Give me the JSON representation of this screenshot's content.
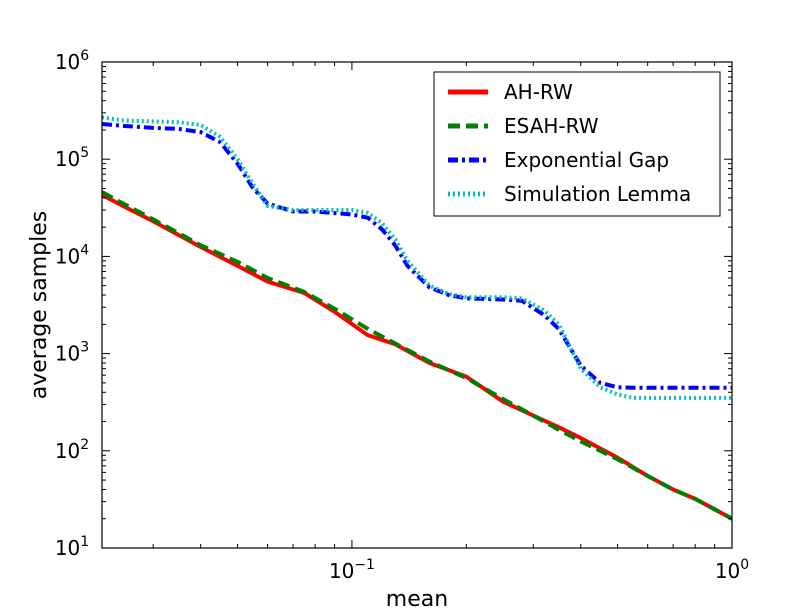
{
  "chart_data": {
    "type": "line",
    "title": "",
    "xlabel": "mean",
    "ylabel": "average samples",
    "xscale": "log",
    "yscale": "log",
    "xlim": [
      0.022,
      1.0
    ],
    "ylim": [
      10,
      1000000
    ],
    "grid": false,
    "legend_position": "top-right",
    "x_ticks": [
      {
        "value": 0.1,
        "base": "10",
        "exp": "−1"
      },
      {
        "value": 1.0,
        "base": "10",
        "exp": "0"
      }
    ],
    "y_ticks": [
      {
        "value": 10,
        "base": "10",
        "exp": "1"
      },
      {
        "value": 100,
        "base": "10",
        "exp": "2"
      },
      {
        "value": 1000,
        "base": "10",
        "exp": "3"
      },
      {
        "value": 10000,
        "base": "10",
        "exp": "4"
      },
      {
        "value": 100000,
        "base": "10",
        "exp": "5"
      },
      {
        "value": 1000000,
        "base": "10",
        "exp": "6"
      }
    ],
    "series": [
      {
        "name": "AH-RW",
        "color": "#ff0000",
        "style": "solid",
        "x": [
          0.022,
          0.025,
          0.03,
          0.04,
          0.05,
          0.06,
          0.075,
          0.09,
          0.11,
          0.13,
          0.16,
          0.2,
          0.25,
          0.3,
          0.35,
          0.4,
          0.5,
          0.6,
          0.7,
          0.8,
          0.9,
          1.0
        ],
        "y": [
          43000,
          33000,
          23000,
          12500,
          8000,
          5500,
          4200,
          2700,
          1550,
          1250,
          800,
          580,
          320,
          230,
          175,
          135,
          85,
          55,
          40,
          32,
          25,
          20
        ]
      },
      {
        "name": "ESAH-RW",
        "color": "#007f00",
        "style": "dashed",
        "x": [
          0.022,
          0.025,
          0.03,
          0.04,
          0.05,
          0.06,
          0.075,
          0.09,
          0.11,
          0.13,
          0.16,
          0.2,
          0.25,
          0.3,
          0.35,
          0.4,
          0.5,
          0.6,
          0.7,
          0.8,
          0.9,
          1.0
        ],
        "y": [
          46000,
          35000,
          24000,
          13000,
          8800,
          6000,
          4300,
          2900,
          1800,
          1270,
          830,
          560,
          340,
          230,
          165,
          125,
          82,
          55,
          40,
          32,
          25,
          20
        ]
      },
      {
        "name": "Exponential Gap",
        "color": "#0000ff",
        "style": "dashdot",
        "x": [
          0.022,
          0.025,
          0.03,
          0.035,
          0.04,
          0.045,
          0.05,
          0.055,
          0.06,
          0.07,
          0.08,
          0.1,
          0.11,
          0.12,
          0.13,
          0.14,
          0.16,
          0.18,
          0.2,
          0.25,
          0.28,
          0.32,
          0.35,
          0.4,
          0.45,
          0.5,
          0.55,
          0.6,
          0.7,
          0.8,
          0.9,
          1.0
        ],
        "y": [
          230000,
          220000,
          210000,
          205000,
          190000,
          150000,
          90000,
          50000,
          35000,
          29000,
          29000,
          27000,
          25000,
          19000,
          13000,
          8000,
          4800,
          4000,
          3700,
          3600,
          3500,
          2500,
          1800,
          750,
          500,
          450,
          445,
          445,
          445,
          445,
          445,
          445
        ]
      },
      {
        "name": "Simulation Lemma",
        "color": "#00bfbf",
        "style": "dotted",
        "x": [
          0.022,
          0.025,
          0.03,
          0.035,
          0.04,
          0.045,
          0.05,
          0.055,
          0.06,
          0.07,
          0.08,
          0.1,
          0.11,
          0.12,
          0.13,
          0.14,
          0.16,
          0.18,
          0.2,
          0.25,
          0.28,
          0.32,
          0.35,
          0.4,
          0.45,
          0.5,
          0.55,
          0.6,
          0.7,
          0.8,
          0.9,
          1.0
        ],
        "y": [
          270000,
          250000,
          245000,
          240000,
          225000,
          170000,
          100000,
          55000,
          33000,
          30000,
          30000,
          30000,
          28000,
          22000,
          15000,
          9000,
          5000,
          4100,
          3800,
          3800,
          3700,
          2800,
          2000,
          700,
          450,
          380,
          350,
          350,
          350,
          350,
          350,
          350
        ]
      }
    ]
  }
}
